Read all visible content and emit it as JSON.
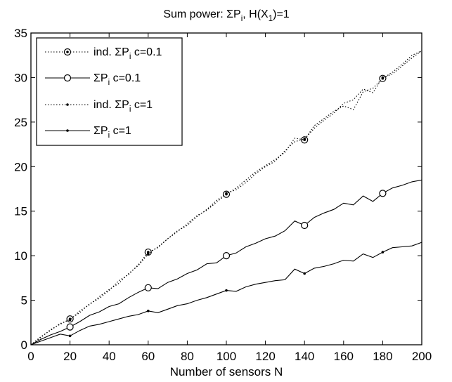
{
  "chart_data": {
    "type": "line",
    "title": "Sum power: ΣP_i, H(X_1)=1",
    "xlabel": "Number of sensors N",
    "ylabel": "",
    "xlim": [
      0,
      200
    ],
    "ylim": [
      0,
      35
    ],
    "xticks": [
      0,
      20,
      40,
      60,
      80,
      100,
      120,
      140,
      160,
      180,
      200
    ],
    "yticks": [
      0,
      5,
      10,
      15,
      20,
      25,
      30,
      35
    ],
    "grid": false,
    "legend_position": "top-left",
    "series": [
      {
        "name": "ind. ΣP_i c=0.1",
        "style": "dotted",
        "marker": "circle-dot",
        "color": "#000000",
        "x": [
          0,
          5,
          10,
          15,
          20,
          25,
          30,
          35,
          40,
          45,
          50,
          55,
          60,
          65,
          70,
          75,
          80,
          85,
          90,
          95,
          100,
          105,
          110,
          115,
          120,
          125,
          130,
          135,
          140,
          145,
          150,
          155,
          160,
          165,
          170,
          175,
          180,
          185,
          190,
          195,
          200
        ],
        "y": [
          0,
          0.8,
          1.7,
          2.3,
          2.9,
          3.6,
          4.6,
          5.2,
          6.1,
          7.2,
          7.9,
          9.0,
          10.4,
          10.9,
          11.9,
          12.7,
          13.6,
          14.5,
          15.1,
          16.0,
          16.9,
          17.6,
          18.5,
          19.4,
          20.1,
          20.8,
          21.6,
          23.2,
          23.0,
          24.6,
          25.4,
          26.2,
          26.8,
          26.4,
          28.4,
          28.8,
          29.9,
          30.6,
          31.5,
          32.5,
          33.0
        ],
        "marker_x": [
          20,
          60,
          100,
          140,
          180
        ],
        "marker_y": [
          2.9,
          10.4,
          16.9,
          23.0,
          29.9
        ]
      },
      {
        "name": "ΣP_i c=0.1",
        "style": "solid",
        "marker": "circle",
        "color": "#000000",
        "x": [
          0,
          5,
          10,
          15,
          20,
          25,
          30,
          35,
          40,
          45,
          50,
          55,
          60,
          65,
          70,
          75,
          80,
          85,
          90,
          95,
          100,
          105,
          110,
          115,
          120,
          125,
          130,
          135,
          140,
          145,
          150,
          155,
          160,
          165,
          170,
          175,
          180,
          185,
          190,
          195,
          200
        ],
        "y": [
          0,
          0.6,
          1.1,
          1.5,
          2.0,
          2.6,
          3.3,
          3.7,
          4.3,
          4.6,
          5.3,
          5.9,
          6.4,
          6.3,
          7.0,
          7.4,
          8.0,
          8.4,
          9.1,
          9.2,
          10.0,
          10.3,
          11.0,
          11.4,
          11.9,
          12.2,
          12.8,
          13.9,
          13.4,
          14.3,
          14.8,
          15.2,
          15.9,
          15.7,
          16.7,
          16.1,
          17.0,
          17.6,
          17.9,
          18.3,
          18.5
        ],
        "marker_x": [
          20,
          60,
          100,
          140,
          180
        ],
        "marker_y": [
          2.0,
          6.4,
          10.0,
          13.4,
          17.0
        ]
      },
      {
        "name": "ind. ΣP_i c=1",
        "style": "dotted",
        "marker": "dot",
        "color": "#000000",
        "x": [
          0,
          5,
          10,
          15,
          20,
          25,
          30,
          35,
          40,
          45,
          50,
          55,
          60,
          65,
          70,
          75,
          80,
          85,
          90,
          95,
          100,
          105,
          110,
          115,
          120,
          125,
          130,
          135,
          140,
          145,
          150,
          155,
          160,
          165,
          170,
          175,
          180,
          185,
          190,
          195,
          200
        ],
        "y": [
          0,
          0.9,
          1.6,
          2.4,
          2.8,
          3.8,
          4.5,
          5.4,
          6.2,
          6.9,
          8.0,
          8.9,
          10.2,
          11.0,
          11.9,
          12.8,
          13.4,
          14.4,
          15.2,
          16.2,
          17.0,
          17.4,
          18.2,
          19.2,
          20.0,
          20.6,
          21.8,
          22.8,
          23.1,
          24.3,
          25.2,
          26.0,
          27.1,
          27.5,
          28.7,
          28.3,
          30.0,
          30.4,
          31.3,
          32.2,
          33.0
        ],
        "marker_x": [
          20,
          60,
          100,
          140,
          180
        ],
        "marker_y": [
          2.8,
          10.2,
          17.0,
          23.1,
          30.0
        ]
      },
      {
        "name": "ΣP_i c=1",
        "style": "solid",
        "marker": "dot",
        "color": "#000000",
        "x": [
          0,
          5,
          10,
          15,
          20,
          25,
          30,
          35,
          40,
          45,
          50,
          55,
          60,
          65,
          70,
          75,
          80,
          85,
          90,
          95,
          100,
          105,
          110,
          115,
          120,
          125,
          130,
          135,
          140,
          145,
          150,
          155,
          160,
          165,
          170,
          175,
          180,
          185,
          190,
          195,
          200
        ],
        "y": [
          0,
          0.4,
          0.8,
          1.2,
          1.0,
          1.6,
          2.1,
          2.3,
          2.6,
          2.9,
          3.2,
          3.4,
          3.8,
          3.6,
          4.0,
          4.4,
          4.6,
          5.0,
          5.3,
          5.7,
          6.1,
          6.0,
          6.5,
          6.8,
          7.0,
          7.2,
          7.3,
          8.5,
          8.0,
          8.6,
          8.8,
          9.1,
          9.5,
          9.4,
          10.2,
          9.8,
          10.4,
          10.9,
          11.0,
          11.1,
          11.5
        ],
        "marker_x": [
          20,
          60,
          100,
          140,
          180
        ],
        "marker_y": [
          1.0,
          3.8,
          6.1,
          8.0,
          10.4
        ]
      }
    ]
  }
}
